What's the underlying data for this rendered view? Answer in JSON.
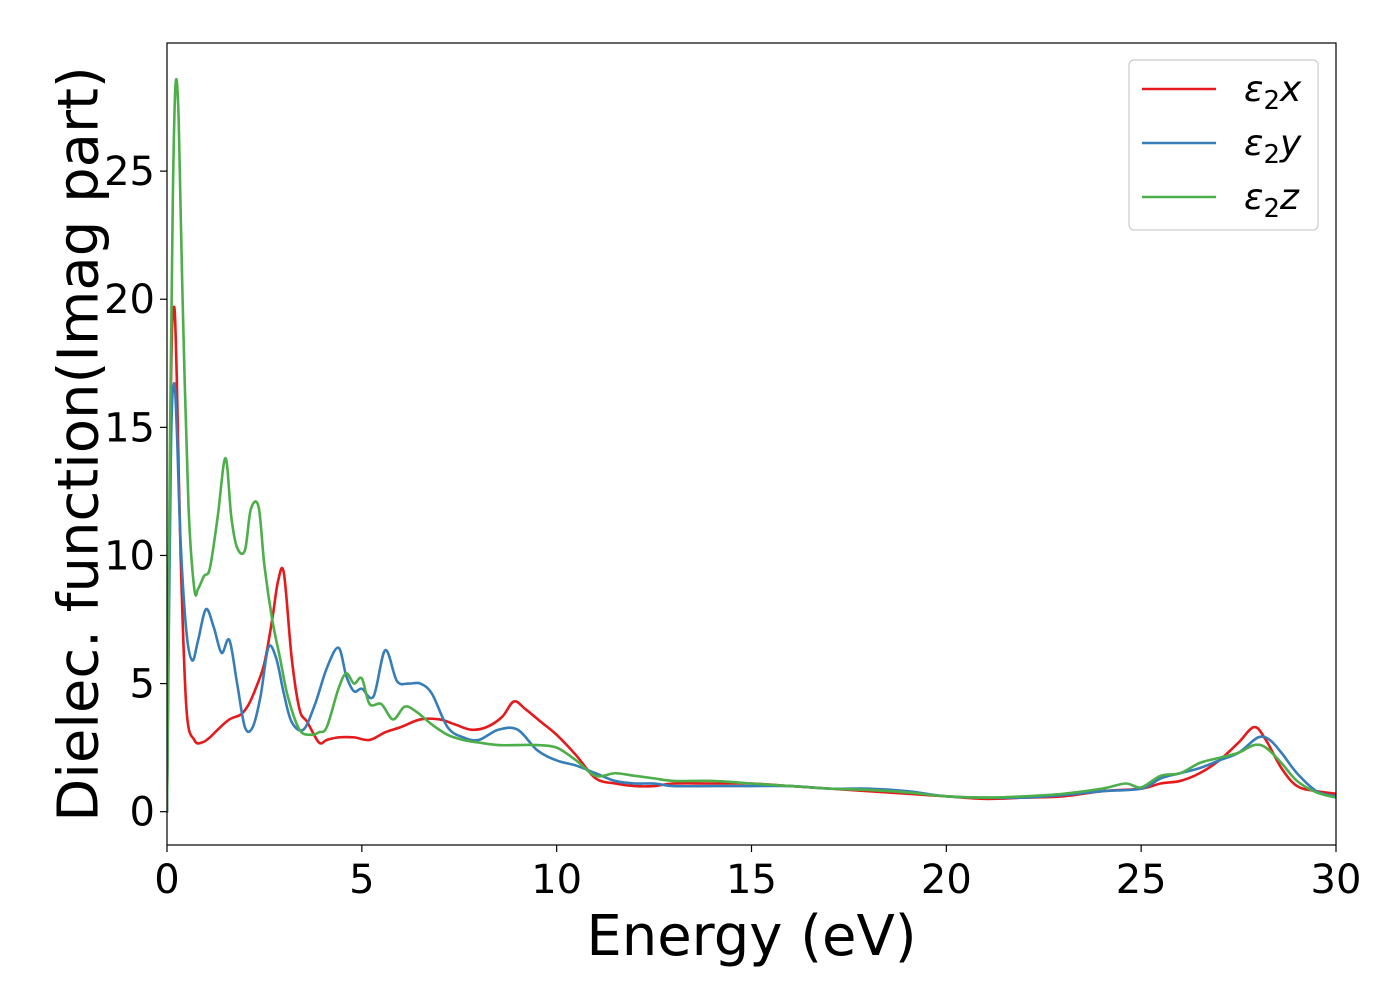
{
  "chart_data": {
    "type": "line",
    "title": "",
    "xlabel": "Energy (eV)",
    "ylabel": "Dielec. function(Imag part)",
    "xlim": [
      0,
      30
    ],
    "ylim": [
      -1.3,
      30.0
    ],
    "xticks": [
      0,
      5,
      10,
      15,
      20,
      25,
      30
    ],
    "yticks": [
      0,
      5,
      10,
      15,
      20,
      25
    ],
    "grid": false,
    "legend_position": "top-right",
    "legend": [
      {
        "base": "ε",
        "sub": "2",
        "axis": "x",
        "color": "#e41a1c"
      },
      {
        "base": "ε",
        "sub": "2",
        "axis": "y",
        "color": "#377eb8"
      },
      {
        "base": "ε",
        "sub": "2",
        "axis": "z",
        "color": "#4daf4a"
      }
    ],
    "series": [
      {
        "key": "x",
        "color": "#e41a1c",
        "x": [
          0,
          0.1,
          0.18,
          0.25,
          0.35,
          0.5,
          0.7,
          0.9,
          1.1,
          1.3,
          1.6,
          1.9,
          2.1,
          2.3,
          2.5,
          2.7,
          2.85,
          3.0,
          3.2,
          3.4,
          3.6,
          3.9,
          4.1,
          4.4,
          4.8,
          5.2,
          5.6,
          6.0,
          6.5,
          7.0,
          7.4,
          7.8,
          8.2,
          8.6,
          8.9,
          9.2,
          9.6,
          10.0,
          10.5,
          11.0,
          11.5,
          12.0,
          12.5,
          13.0,
          14.0,
          15.0,
          16.0,
          17.0,
          18.0,
          19.0,
          20.0,
          21.0,
          22.0,
          23.0,
          24.0,
          25.0,
          25.5,
          26.0,
          26.5,
          27.0,
          27.5,
          27.9,
          28.2,
          28.6,
          29.0,
          29.5,
          30.0
        ],
        "y": [
          0,
          16.5,
          19.7,
          17.0,
          10.0,
          4.0,
          2.8,
          2.7,
          2.9,
          3.2,
          3.6,
          3.8,
          4.2,
          4.9,
          5.8,
          7.5,
          9.0,
          9.3,
          6.0,
          4.0,
          3.5,
          2.7,
          2.8,
          2.9,
          2.9,
          2.8,
          3.1,
          3.3,
          3.6,
          3.6,
          3.4,
          3.2,
          3.3,
          3.7,
          4.3,
          4.0,
          3.5,
          3.0,
          2.2,
          1.3,
          1.1,
          1.0,
          1.0,
          1.1,
          1.1,
          1.1,
          1.0,
          0.9,
          0.8,
          0.7,
          0.6,
          0.5,
          0.55,
          0.6,
          0.8,
          0.9,
          1.1,
          1.2,
          1.5,
          2.0,
          2.7,
          3.3,
          2.8,
          1.7,
          1.0,
          0.8,
          0.7
        ]
      },
      {
        "key": "y",
        "color": "#377eb8",
        "x": [
          0,
          0.1,
          0.18,
          0.25,
          0.35,
          0.5,
          0.65,
          0.8,
          1.0,
          1.2,
          1.4,
          1.6,
          1.8,
          2.0,
          2.2,
          2.4,
          2.6,
          2.8,
          3.0,
          3.2,
          3.5,
          3.8,
          4.1,
          4.4,
          4.6,
          4.8,
          5.0,
          5.3,
          5.6,
          5.9,
          6.2,
          6.5,
          6.8,
          7.2,
          7.6,
          8.0,
          8.5,
          9.0,
          9.5,
          10.0,
          10.5,
          11.0,
          11.5,
          12.0,
          12.5,
          13.0,
          14.0,
          15.0,
          16.0,
          17.0,
          18.0,
          19.0,
          20.0,
          21.0,
          22.0,
          23.0,
          24.0,
          25.0,
          25.5,
          26.0,
          26.5,
          27.0,
          27.5,
          28.0,
          28.3,
          28.6,
          29.0,
          29.5,
          30.0
        ],
        "y": [
          0,
          14.0,
          16.7,
          15.0,
          10.5,
          7.0,
          5.9,
          6.7,
          7.9,
          7.2,
          6.2,
          6.7,
          5.0,
          3.3,
          3.3,
          4.5,
          6.4,
          6.0,
          4.6,
          3.5,
          3.2,
          4.2,
          5.6,
          6.4,
          5.3,
          4.7,
          4.8,
          4.5,
          6.3,
          5.1,
          5.0,
          5.0,
          4.6,
          3.3,
          2.9,
          2.8,
          3.2,
          3.2,
          2.4,
          2.0,
          1.8,
          1.5,
          1.2,
          1.1,
          1.1,
          1.0,
          1.0,
          1.0,
          1.0,
          0.9,
          0.9,
          0.8,
          0.6,
          0.55,
          0.55,
          0.65,
          0.8,
          0.9,
          1.3,
          1.5,
          1.7,
          2.0,
          2.3,
          2.9,
          2.8,
          2.3,
          1.5,
          0.8,
          0.6
        ]
      },
      {
        "key": "z",
        "color": "#4daf4a",
        "x": [
          0,
          0.08,
          0.15,
          0.22,
          0.3,
          0.4,
          0.55,
          0.7,
          0.8,
          0.95,
          1.1,
          1.3,
          1.5,
          1.65,
          1.8,
          2.0,
          2.15,
          2.35,
          2.5,
          2.7,
          2.9,
          3.1,
          3.4,
          3.7,
          3.9,
          4.1,
          4.4,
          4.6,
          4.8,
          5.0,
          5.2,
          5.5,
          5.8,
          6.1,
          6.4,
          6.8,
          7.2,
          7.6,
          8.0,
          8.5,
          9.0,
          9.5,
          10.0,
          10.5,
          11.0,
          11.5,
          12.0,
          12.5,
          13.0,
          14.0,
          15.0,
          16.0,
          17.0,
          18.0,
          19.0,
          20.0,
          21.0,
          22.0,
          23.0,
          24.0,
          24.6,
          25.0,
          25.5,
          26.0,
          26.5,
          27.0,
          27.5,
          27.9,
          28.2,
          28.6,
          29.0,
          29.5,
          30.0
        ],
        "y": [
          0,
          15.0,
          24.0,
          28.4,
          27.0,
          20.0,
          12.0,
          8.7,
          8.7,
          9.2,
          9.5,
          11.5,
          13.8,
          11.5,
          10.3,
          10.2,
          11.8,
          11.9,
          9.6,
          7.5,
          6.0,
          4.5,
          3.2,
          3.0,
          3.1,
          3.3,
          4.8,
          5.4,
          5.0,
          5.2,
          4.2,
          4.2,
          3.6,
          4.1,
          3.9,
          3.4,
          3.0,
          2.8,
          2.7,
          2.6,
          2.6,
          2.6,
          2.5,
          2.0,
          1.4,
          1.5,
          1.4,
          1.3,
          1.2,
          1.2,
          1.1,
          1.0,
          0.9,
          0.85,
          0.75,
          0.6,
          0.55,
          0.6,
          0.7,
          0.9,
          1.1,
          0.95,
          1.4,
          1.5,
          1.9,
          2.1,
          2.3,
          2.6,
          2.5,
          1.9,
          1.2,
          0.75,
          0.55
        ]
      }
    ]
  }
}
